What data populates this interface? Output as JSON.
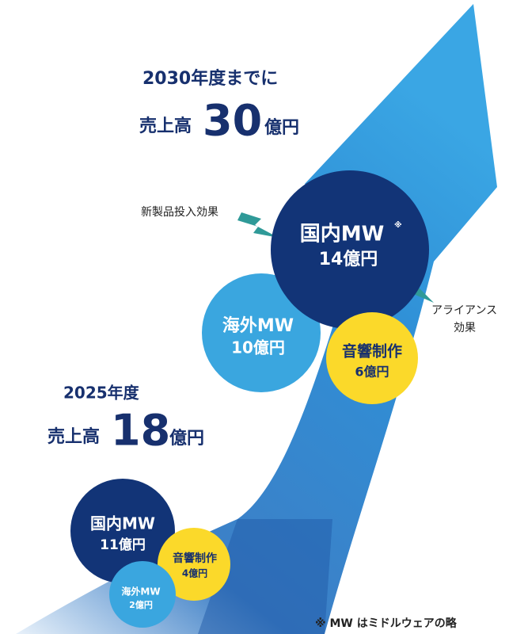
{
  "heading_2030": {
    "period": "2030年度までに",
    "prefix": "売上高",
    "amount": "30",
    "unit": "億円"
  },
  "heading_2025": {
    "period": "2025年度",
    "prefix": "売上高",
    "amount": "18",
    "unit": "億円"
  },
  "bubbles_2030": [
    {
      "name": "国内MW",
      "mark": "※",
      "amount": "14億円"
    },
    {
      "name": "海外MW",
      "amount": "10億円"
    },
    {
      "name": "音響制作",
      "amount": "6億円"
    }
  ],
  "bubbles_2025": [
    {
      "name": "国内MW",
      "amount": "11億円"
    },
    {
      "name": "音響制作",
      "amount": "4億円"
    },
    {
      "name": "海外MW",
      "amount": "2億円"
    }
  ],
  "effects": {
    "new_products": "新製品投入効果",
    "alliance_line1": "アライアンス",
    "alliance_line2": "効果"
  },
  "footnote": "※ MW はミドルウェアの略"
}
